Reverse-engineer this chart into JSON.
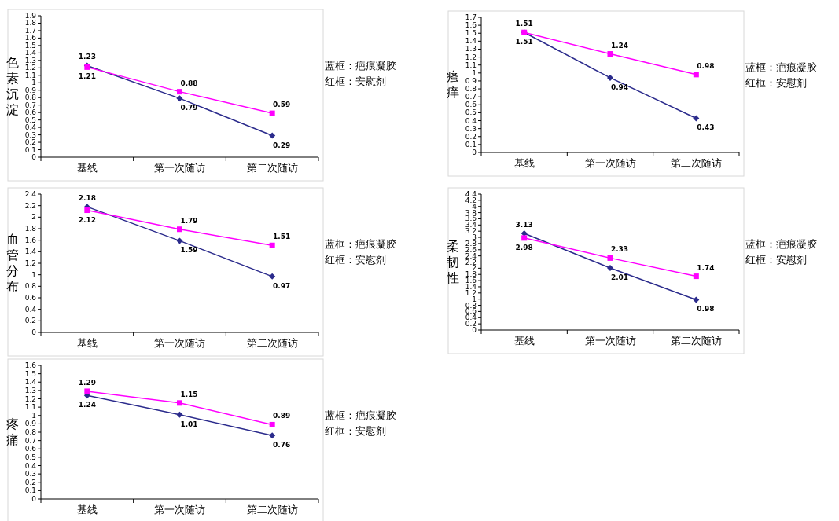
{
  "chart_data": [
    {
      "type": "line",
      "ylabel": "色素沉淀",
      "categories": [
        "基线",
        "第一次随访",
        "第二次随访"
      ],
      "ylim": [
        0,
        1.9
      ],
      "yticks": [
        0,
        0.1,
        0.2,
        0.3,
        0.4,
        0.5,
        0.6,
        0.7,
        0.8,
        0.9,
        1,
        1.1,
        1.2,
        1.3,
        1.4,
        1.5,
        1.6,
        1.7,
        1.8,
        1.9
      ],
      "data_labels": true,
      "series": [
        {
          "color": "#2b2b8c",
          "marker": "diamond",
          "values": [
            1.23,
            0.79,
            0.29
          ]
        },
        {
          "color": "#ff00ff",
          "marker": "square",
          "values": [
            1.21,
            0.88,
            0.59
          ]
        }
      ],
      "annotations": [
        "蓝框：疤痕凝胶",
        "红框：安慰剂"
      ]
    },
    {
      "type": "line",
      "ylabel": "瘙痒",
      "categories": [
        "基线",
        "第一次随访",
        "第二次随访"
      ],
      "ylim": [
        0,
        1.7
      ],
      "yticks": [
        0,
        0.1,
        0.2,
        0.3,
        0.4,
        0.5,
        0.6,
        0.7,
        0.8,
        0.9,
        1,
        1.1,
        1.2,
        1.3,
        1.4,
        1.5,
        1.6,
        1.7
      ],
      "data_labels": true,
      "series": [
        {
          "color": "#2b2b8c",
          "marker": "diamond",
          "values": [
            1.51,
            0.94,
            0.43
          ]
        },
        {
          "color": "#ff00ff",
          "marker": "square",
          "values": [
            1.51,
            1.24,
            0.98
          ]
        }
      ],
      "annotations": [
        "蓝框：疤痕凝胶",
        "红框：安慰剂"
      ]
    },
    {
      "type": "line",
      "ylabel": "血管分布",
      "categories": [
        "基线",
        "第一次随访",
        "第二次随访"
      ],
      "ylim": [
        0,
        2.4
      ],
      "yticks": [
        0,
        0.2,
        0.4,
        0.6,
        0.8,
        1,
        1.2,
        1.4,
        1.6,
        1.8,
        2,
        2.2,
        2.4
      ],
      "data_labels": true,
      "series": [
        {
          "color": "#2b2b8c",
          "marker": "diamond",
          "values": [
            2.18,
            1.59,
            0.97
          ]
        },
        {
          "color": "#ff00ff",
          "marker": "square",
          "values": [
            2.12,
            1.79,
            1.51
          ]
        }
      ],
      "annotations": [
        "蓝框：疤痕凝胶",
        "红框：安慰剂"
      ]
    },
    {
      "type": "line",
      "ylabel": "柔韧性",
      "categories": [
        "基线",
        "第一次随访",
        "第二次随访"
      ],
      "ylim": [
        0,
        4.4
      ],
      "yticks": [
        0,
        0.2,
        0.4,
        0.6,
        0.8,
        1,
        1.2,
        1.4,
        1.6,
        1.8,
        2,
        2.2,
        2.4,
        2.6,
        2.8,
        3,
        3.2,
        3.4,
        3.6,
        3.8,
        4,
        4.2,
        4.4
      ],
      "data_labels": true,
      "series": [
        {
          "color": "#2b2b8c",
          "marker": "diamond",
          "values": [
            3.13,
            2.01,
            0.98
          ]
        },
        {
          "color": "#ff00ff",
          "marker": "square",
          "values": [
            2.98,
            2.33,
            1.74
          ]
        }
      ],
      "annotations": [
        "蓝框：疤痕凝胶",
        "红框：安慰剂"
      ]
    },
    {
      "type": "line",
      "ylabel": "疼痛",
      "categories": [
        "基线",
        "第一次随访",
        "第二次随访"
      ],
      "ylim": [
        0,
        1.6
      ],
      "yticks": [
        0,
        0.1,
        0.2,
        0.3,
        0.4,
        0.5,
        0.6,
        0.7,
        0.8,
        0.9,
        1,
        1.1,
        1.2,
        1.3,
        1.4,
        1.5,
        1.6
      ],
      "data_labels": true,
      "series": [
        {
          "color": "#2b2b8c",
          "marker": "diamond",
          "values": [
            1.24,
            1.01,
            0.76
          ]
        },
        {
          "color": "#ff00ff",
          "marker": "square",
          "values": [
            1.29,
            1.15,
            0.89
          ]
        }
      ],
      "annotations": [
        "蓝框：疤痕凝胶",
        "红框：安慰剂"
      ]
    }
  ]
}
